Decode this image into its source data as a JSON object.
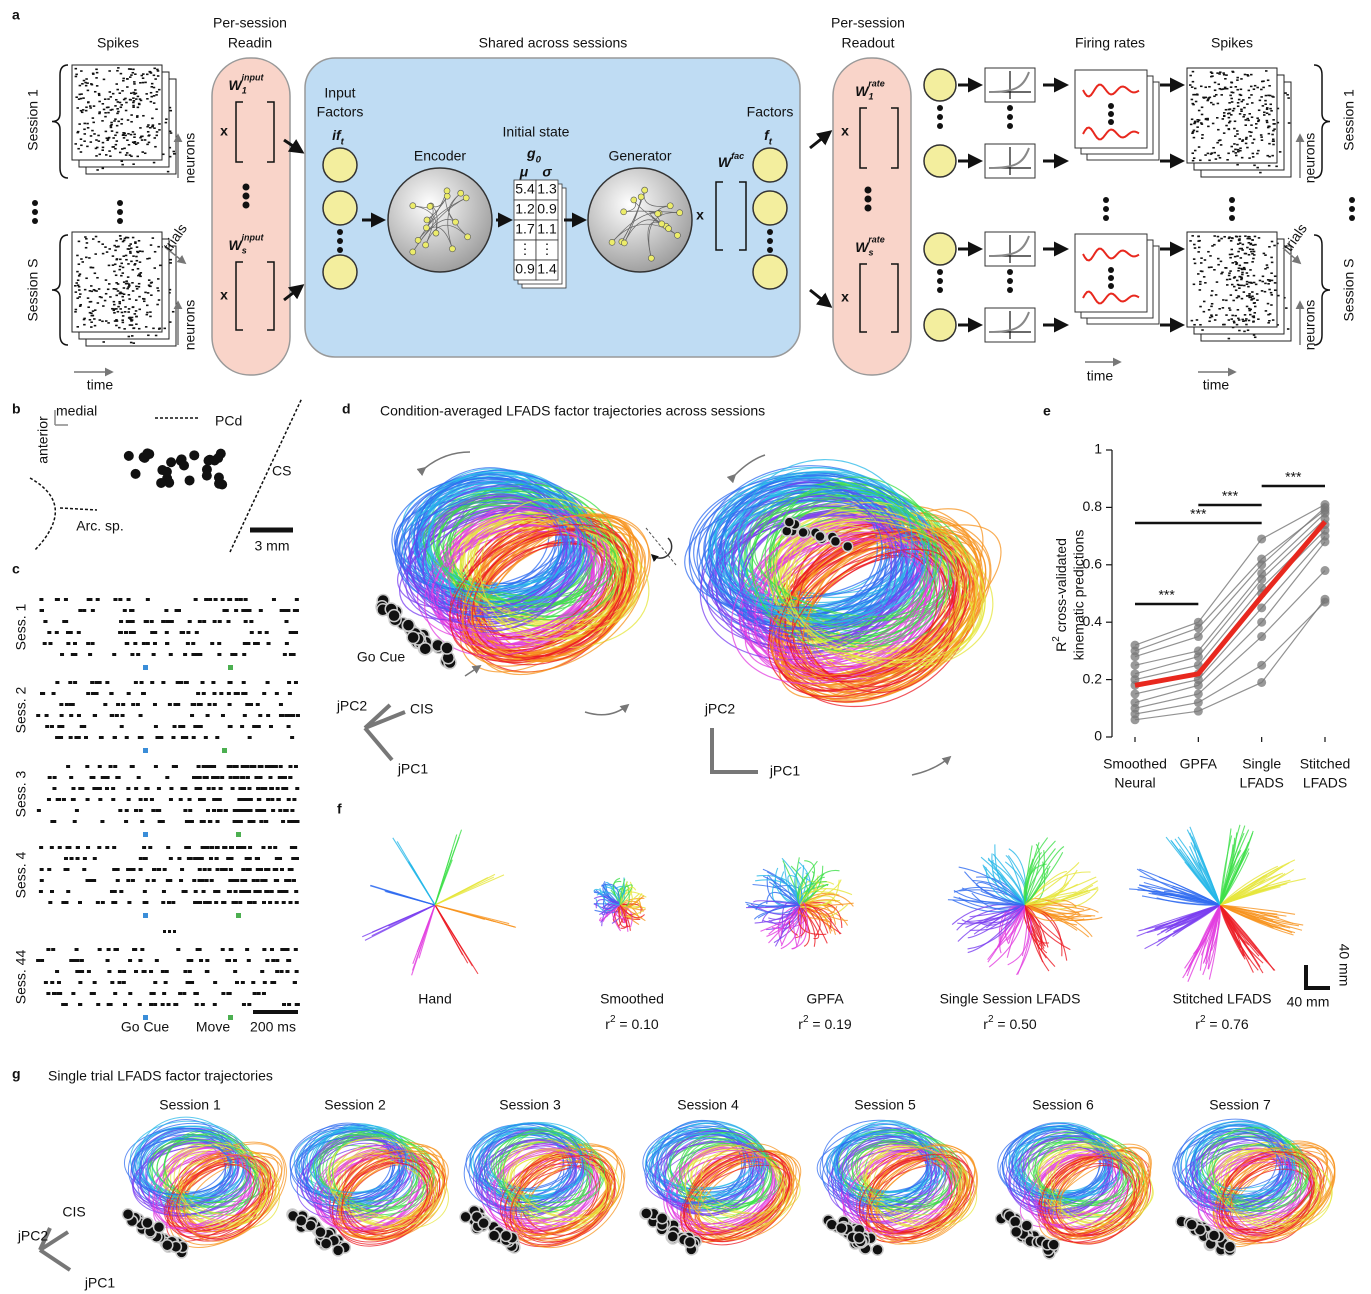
{
  "panel_a": {
    "label": "a",
    "spikes_in": "Spikes",
    "readin": [
      "Per-session",
      "Readin"
    ],
    "shared": "Shared across sessions",
    "readout": [
      "Per-session",
      "Readout"
    ],
    "firing_rates": "Firing rates",
    "spikes_out": "Spikes",
    "session_1": "Session 1",
    "session_s": "Session S",
    "neurons": "neurons",
    "trials": "trials",
    "time": "time",
    "input_factors": [
      "Input",
      "Factors"
    ],
    "if_t": {
      "base": "if",
      "sub": "t"
    },
    "encoder": "Encoder",
    "initial_state": "Initial state",
    "g0": {
      "base": "g",
      "sub": "0"
    },
    "mu": "μ",
    "sigma": "σ",
    "matrix": [
      [
        "5.4",
        "1.3"
      ],
      [
        "1.2",
        "0.9"
      ],
      [
        "1.7",
        "1.1"
      ],
      [
        "⋮",
        "⋮"
      ],
      [
        "0.9",
        "1.4"
      ]
    ],
    "generator": "Generator",
    "w_fac": {
      "base": "W",
      "sup": "fac"
    },
    "factors": "Factors",
    "f_t": {
      "base": "f",
      "sub": "t"
    },
    "w_input_1": {
      "base": "W",
      "sub": "1",
      "sup": "input"
    },
    "w_input_s": {
      "base": "W",
      "sub": "s",
      "sup": "input"
    },
    "w_rate_1": {
      "base": "W",
      "sub": "1",
      "sup": "rate"
    },
    "w_rate_s": {
      "base": "W",
      "sub": "s",
      "sup": "rate"
    },
    "times": "x"
  },
  "panel_b": {
    "label": "b",
    "medial": "medial",
    "anterior": "anterior",
    "pcd": "PCd",
    "cs": "CS",
    "arc": "Arc. sp.",
    "scale": "3 mm"
  },
  "panel_c": {
    "label": "c",
    "sessions": [
      "Sess. 1",
      "Sess. 2",
      "Sess. 3",
      "Sess. 4",
      "Sess. 44"
    ],
    "go_cue": "Go Cue",
    "move": "Move",
    "scale": "200 ms"
  },
  "panel_d": {
    "label": "d",
    "title": "Condition-averaged LFADS factor trajectories across sessions",
    "go_cue": "Go Cue",
    "jpc2": "jPC2",
    "cis": "CIS",
    "jpc1": "jPC1"
  },
  "chart_data": {
    "type": "line",
    "label": "e",
    "ylabel": {
      "base": "R",
      "sup": "2",
      "rest": " cross-validated",
      "line2": "kinematic predictions"
    },
    "categories": [
      [
        "Smoothed",
        "Neural"
      ],
      [
        "GPFA"
      ],
      [
        "Single",
        "LFADS"
      ],
      [
        "Stitched",
        "LFADS"
      ]
    ],
    "ylim": [
      0,
      1
    ],
    "yticks": [
      0,
      0.2,
      0.4,
      0.6,
      0.8,
      1
    ],
    "significance": [
      "***",
      "***",
      "***",
      "***"
    ],
    "series": [
      {
        "color": "#777777",
        "values": [
          0.32,
          0.4,
          0.69,
          0.81
        ]
      },
      {
        "color": "#777777",
        "values": [
          0.3,
          0.38,
          0.62,
          0.79
        ]
      },
      {
        "color": "#777777",
        "values": [
          0.28,
          0.35,
          0.6,
          0.8
        ]
      },
      {
        "color": "#777777",
        "values": [
          0.25,
          0.3,
          0.57,
          0.78
        ]
      },
      {
        "color": "#777777",
        "values": [
          0.22,
          0.28,
          0.55,
          0.76
        ]
      },
      {
        "color": "#777777",
        "values": [
          0.2,
          0.25,
          0.52,
          0.74
        ]
      },
      {
        "color": "#777777",
        "values": [
          0.18,
          0.22,
          0.5,
          0.72
        ]
      },
      {
        "color": "#777777",
        "values": [
          0.15,
          0.2,
          0.45,
          0.7
        ]
      },
      {
        "color": "#777777",
        "values": [
          0.12,
          0.18,
          0.4,
          0.68
        ]
      },
      {
        "color": "#777777",
        "values": [
          0.1,
          0.15,
          0.35,
          0.58
        ]
      },
      {
        "color": "#777777",
        "values": [
          0.08,
          0.12,
          0.25,
          0.47
        ]
      },
      {
        "color": "#777777",
        "values": [
          0.06,
          0.09,
          0.19,
          0.48
        ]
      },
      {
        "color": "#e8281e",
        "values": [
          0.18,
          0.22,
          0.49,
          0.75
        ]
      }
    ]
  },
  "panel_f": {
    "label": "f",
    "methods": [
      {
        "name": "Hand"
      },
      {
        "name": "Smoothed",
        "r": "r",
        "sup": "2",
        "value": " = 0.10"
      },
      {
        "name": "GPFA",
        "r": "r",
        "sup": "2",
        "value": " = 0.19"
      },
      {
        "name": "Single Session LFADS",
        "r": "r",
        "sup": "2",
        "value": " = 0.50"
      },
      {
        "name": "Stitched LFADS",
        "r": "r",
        "sup": "2",
        "value": " = 0.76"
      }
    ],
    "scale": "40 mm"
  },
  "panel_g": {
    "label": "g",
    "title": "Single trial LFADS factor trajectories",
    "sessions": [
      "Session 1",
      "Session 2",
      "Session 3",
      "Session 4",
      "Session 5",
      "Session 6",
      "Session 7"
    ],
    "cis": "CIS",
    "jpc2": "jPC2",
    "jpc1": "jPC1"
  }
}
